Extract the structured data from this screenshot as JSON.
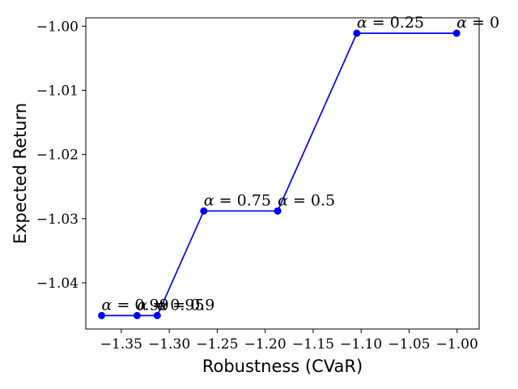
{
  "chart_data": {
    "type": "line",
    "xlabel": "Robustness (CVaR)",
    "ylabel": "Expected Return",
    "xlim": [
      -1.387,
      -0.977
    ],
    "ylim": [
      -1.0472,
      -0.9987
    ],
    "grid": false,
    "legend": "none",
    "x_ticks": [
      -1.35,
      -1.3,
      -1.25,
      -1.2,
      -1.15,
      -1.1,
      -1.05,
      -1.0
    ],
    "x_tick_labels": [
      "−1.35",
      "−1.30",
      "−1.25",
      "−1.20",
      "−1.15",
      "−1.10",
      "−1.05",
      "−1.00"
    ],
    "y_ticks": [
      -1.0,
      -1.01,
      -1.02,
      -1.03,
      -1.04
    ],
    "y_tick_labels": [
      "−1.00",
      "−1.01",
      "−1.02",
      "−1.03",
      "−1.04"
    ],
    "series": [
      {
        "color": "#0000ff",
        "marker": "circle",
        "x": [
          -1.3705,
          -1.3335,
          -1.3125,
          -1.264,
          -1.187,
          -1.1045,
          -1.0005
        ],
        "y": [
          -1.0451,
          -1.0451,
          -1.0451,
          -1.0288,
          -1.0288,
          -1.0011,
          -1.0011
        ]
      }
    ],
    "annotations": [
      {
        "symbol": "α",
        "text": " = 0.99",
        "x": -1.3705,
        "y": -1.0451
      },
      {
        "symbol": "α",
        "text": " = 0.95",
        "x": -1.3335,
        "y": -1.0451
      },
      {
        "symbol": "α",
        "text": " = 0.9",
        "x": -1.3125,
        "y": -1.0451
      },
      {
        "symbol": "α",
        "text": " = 0.75",
        "x": -1.264,
        "y": -1.0288
      },
      {
        "symbol": "α",
        "text": " = 0.5",
        "x": -1.187,
        "y": -1.0288
      },
      {
        "symbol": "α",
        "text": " = 0.25",
        "x": -1.1045,
        "y": -1.0011
      },
      {
        "symbol": "α",
        "text": " = 0",
        "x": -1.0005,
        "y": -1.0011
      }
    ]
  }
}
